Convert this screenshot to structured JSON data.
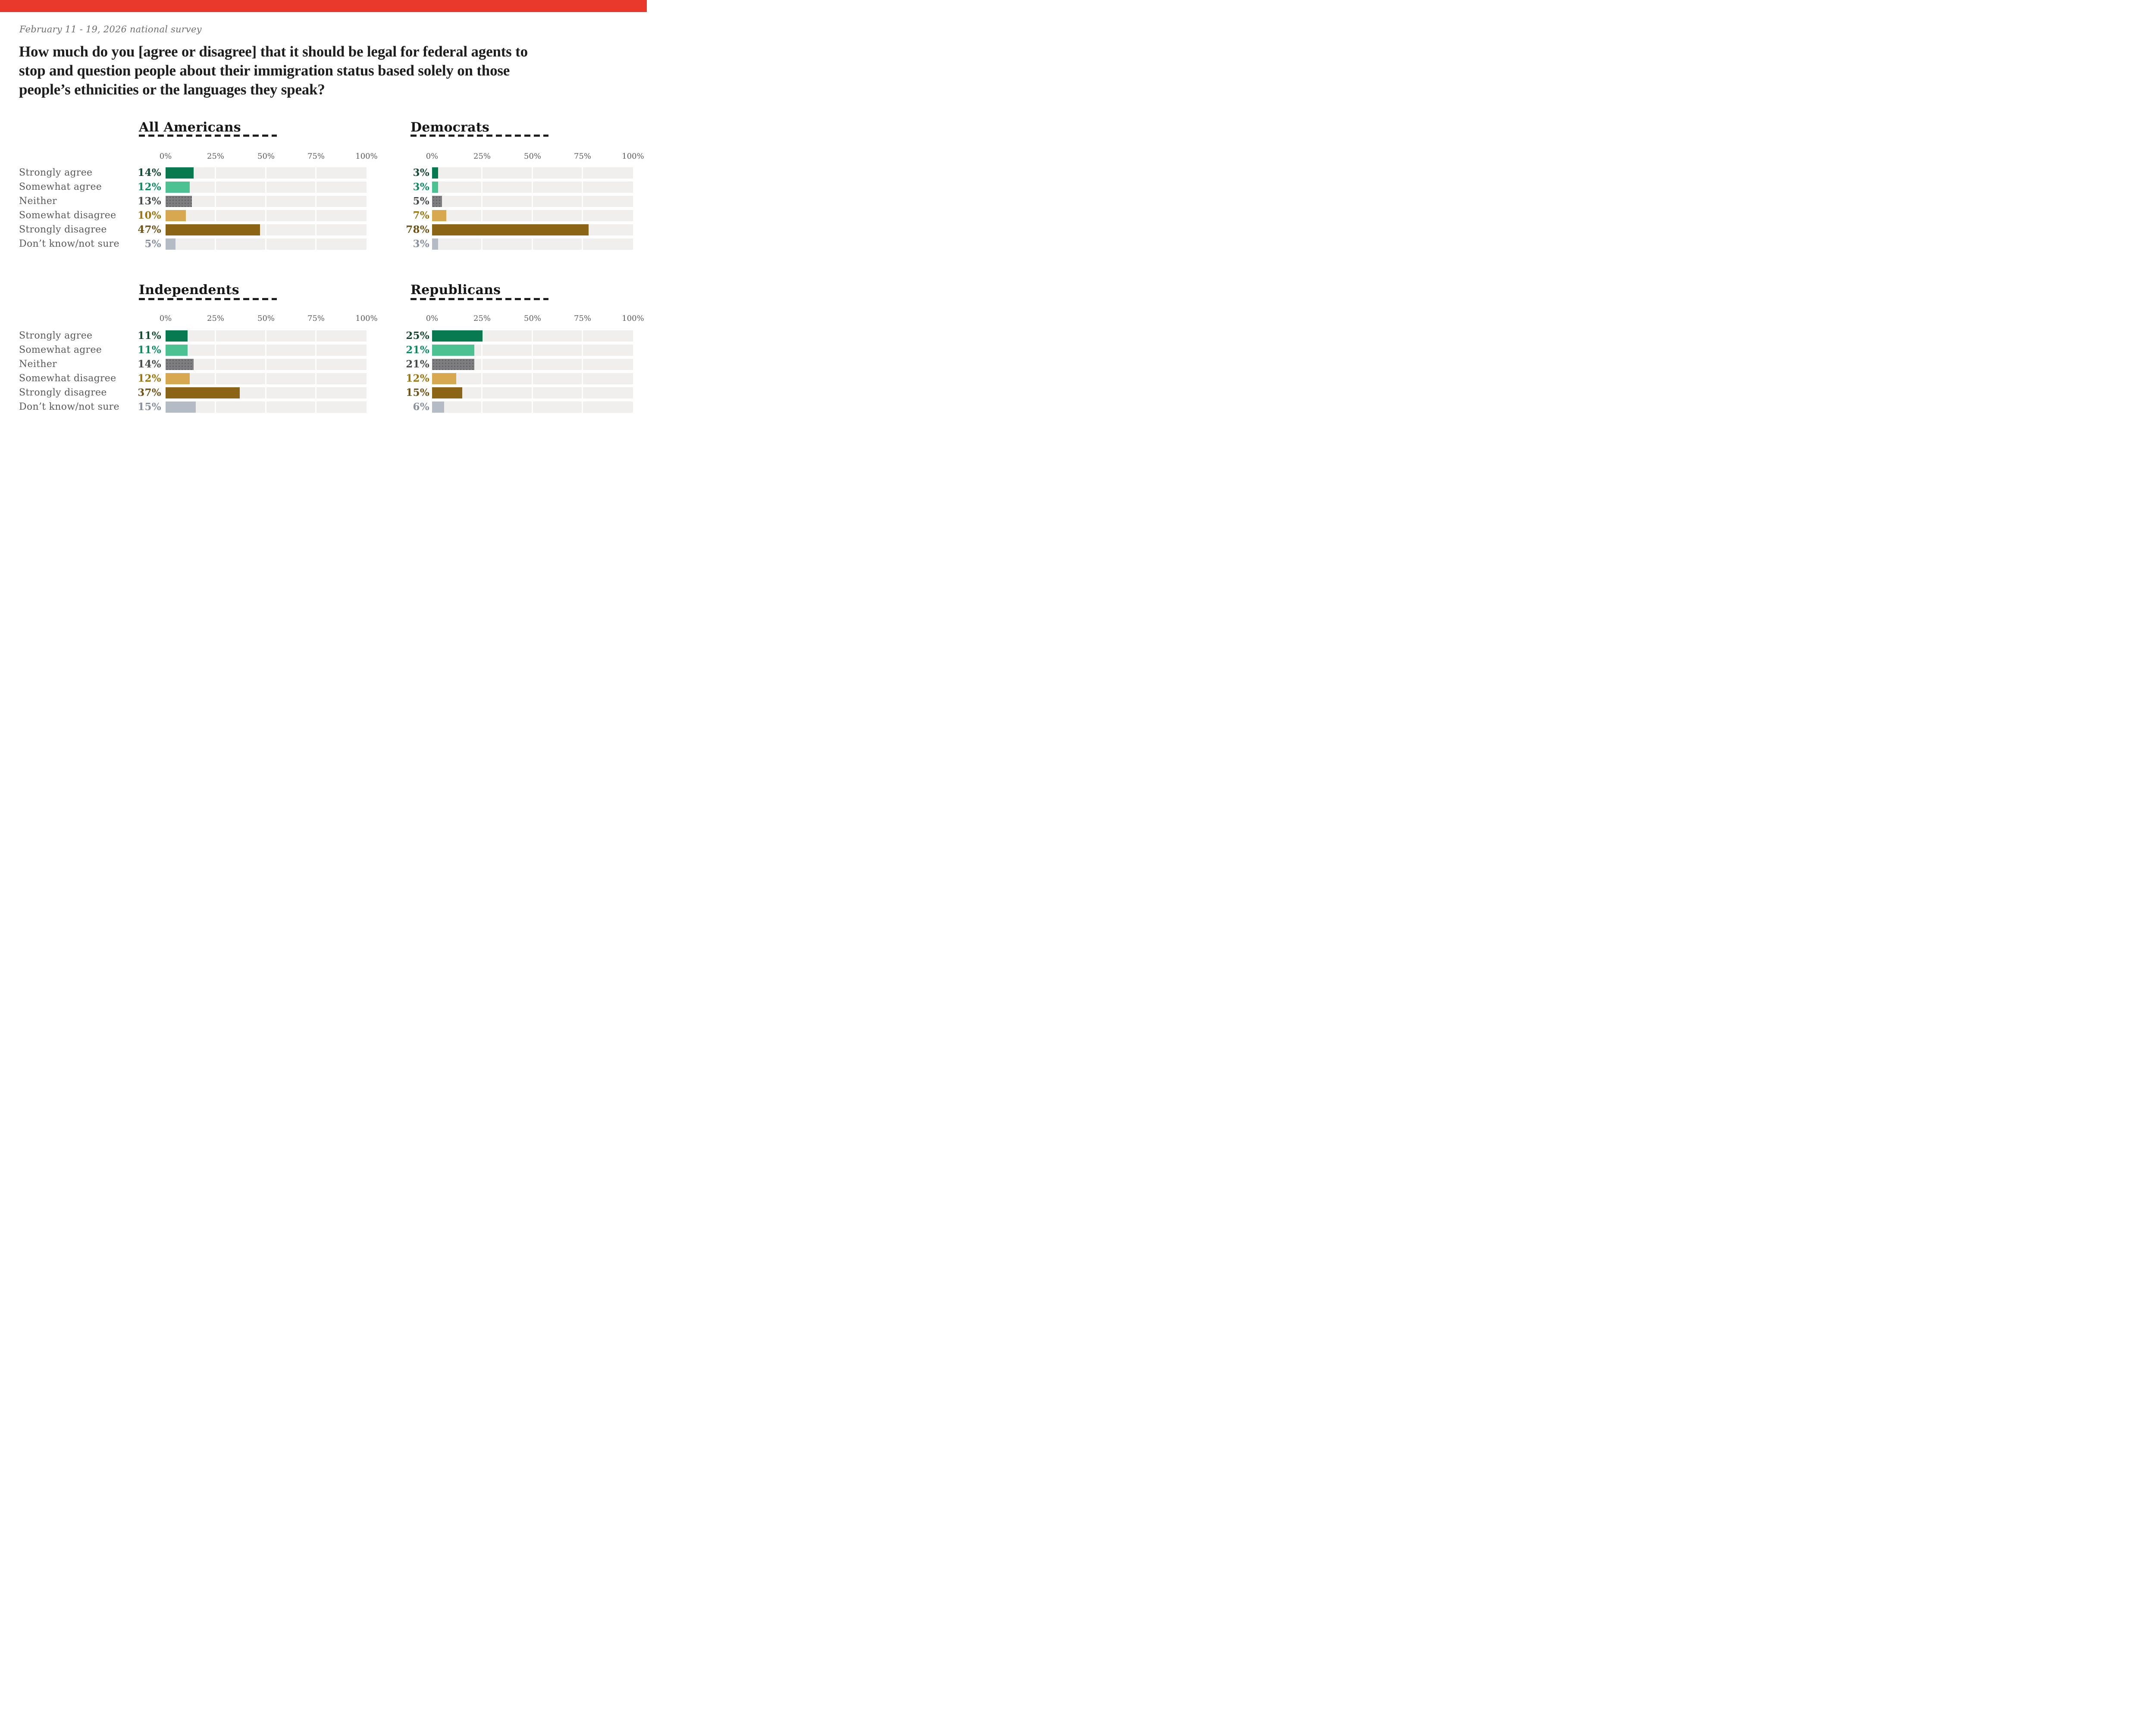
{
  "accent_bar_color": "#e8392c",
  "survey_note": "February 11 - 19, 2026 national survey",
  "title": "How much do you [agree or disagree] that it should be legal for federal agents to\nstop and question people about their immigration status based solely on those\npeople’s ethnicities or the languages they speak?",
  "axis": {
    "ticks": [
      "0%",
      "25%",
      "50%",
      "75%",
      "100%"
    ]
  },
  "categories": [
    "Strongly agree",
    "Somewhat agree",
    "Neither",
    "Somewhat disagree",
    "Strongly disagree",
    "Don’t know/not sure"
  ],
  "chart_data": {
    "type": "bar",
    "orientation": "horizontal",
    "title": "How much do you [agree or disagree] that it should be legal for federal agents to stop and question people about their immigration status based solely on those people’s ethnicities or the languages they speak?",
    "subtitle": "February 11 - 19, 2026 national survey",
    "categories": [
      "Strongly agree",
      "Somewhat agree",
      "Neither",
      "Somewhat disagree",
      "Strongly disagree",
      "Don’t know/not sure"
    ],
    "series": [
      {
        "name": "All Americans",
        "values": [
          14,
          12,
          13,
          10,
          47,
          5
        ]
      },
      {
        "name": "Democrats",
        "values": [
          3,
          3,
          5,
          7,
          78,
          3
        ]
      },
      {
        "name": "Independents",
        "values": [
          11,
          11,
          14,
          12,
          37,
          15
        ]
      },
      {
        "name": "Republicans",
        "values": [
          25,
          21,
          21,
          12,
          15,
          6
        ]
      }
    ],
    "xlim": [
      0,
      100
    ],
    "x_tick_labels": [
      "0%",
      "25%",
      "50%",
      "75%",
      "100%"
    ],
    "grid": "white gaps at 25/50/75 on light-gray tracks",
    "legend_position": "none",
    "bar_colors": [
      "#087a52",
      "#4cc293",
      "#7e7e81",
      "#d8a850",
      "#8b6415",
      "#b4bbc4"
    ]
  },
  "panels": [
    {
      "title": "All Americans",
      "rows": [
        {
          "label": "Strongly agree",
          "value": 14,
          "display": "14%",
          "bar": "#087a52",
          "text": "#114a33"
        },
        {
          "label": "Somewhat agree",
          "value": 12,
          "display": "12%",
          "bar": "#4cc293",
          "text": "#108a5f"
        },
        {
          "label": "Neither",
          "value": 13,
          "display": "13%",
          "bar": "#7e7e81",
          "text": "#474a4a"
        },
        {
          "label": "Somewhat disagree",
          "value": 10,
          "display": "10%",
          "bar": "#d8a850",
          "text": "#9b7412"
        },
        {
          "label": "Strongly disagree",
          "value": 47,
          "display": "47%",
          "bar": "#8b6415",
          "text": "#6f5110"
        },
        {
          "label": "Don’t know/not sure",
          "value": 5,
          "display": "5%",
          "bar": "#b4bbc4",
          "text": "#87909c"
        }
      ]
    },
    {
      "title": "Democrats",
      "rows": [
        {
          "label": "Strongly agree",
          "value": 3,
          "display": "3%",
          "bar": "#087a52",
          "text": "#114a33"
        },
        {
          "label": "Somewhat agree",
          "value": 3,
          "display": "3%",
          "bar": "#4cc293",
          "text": "#108a5f"
        },
        {
          "label": "Neither",
          "value": 5,
          "display": "5%",
          "bar": "#7e7e81",
          "text": "#474a4a"
        },
        {
          "label": "Somewhat disagree",
          "value": 7,
          "display": "7%",
          "bar": "#d8a850",
          "text": "#9b7412"
        },
        {
          "label": "Strongly disagree",
          "value": 78,
          "display": "78%",
          "bar": "#8b6415",
          "text": "#6f5110"
        },
        {
          "label": "Don’t know/not sure",
          "value": 3,
          "display": "3%",
          "bar": "#b4bbc4",
          "text": "#87909c"
        }
      ]
    },
    {
      "title": "Independents",
      "rows": [
        {
          "label": "Strongly agree",
          "value": 11,
          "display": "11%",
          "bar": "#087a52",
          "text": "#114a33"
        },
        {
          "label": "Somewhat agree",
          "value": 11,
          "display": "11%",
          "bar": "#4cc293",
          "text": "#108a5f"
        },
        {
          "label": "Neither",
          "value": 14,
          "display": "14%",
          "bar": "#7e7e81",
          "text": "#474a4a"
        },
        {
          "label": "Somewhat disagree",
          "value": 12,
          "display": "12%",
          "bar": "#d8a850",
          "text": "#9b7412"
        },
        {
          "label": "Strongly disagree",
          "value": 37,
          "display": "37%",
          "bar": "#8b6415",
          "text": "#6f5110"
        },
        {
          "label": "Don’t know/not sure",
          "value": 15,
          "display": "15%",
          "bar": "#b4bbc4",
          "text": "#87909c"
        }
      ]
    },
    {
      "title": "Republicans",
      "rows": [
        {
          "label": "Strongly agree",
          "value": 25,
          "display": "25%",
          "bar": "#087a52",
          "text": "#114a33"
        },
        {
          "label": "Somewhat agree",
          "value": 21,
          "display": "21%",
          "bar": "#4cc293",
          "text": "#108a5f"
        },
        {
          "label": "Neither",
          "value": 21,
          "display": "21%",
          "bar": "#7e7e81",
          "text": "#474a4a"
        },
        {
          "label": "Somewhat disagree",
          "value": 12,
          "display": "12%",
          "bar": "#d8a850",
          "text": "#9b7412"
        },
        {
          "label": "Strongly disagree",
          "value": 15,
          "display": "15%",
          "bar": "#8b6415",
          "text": "#6f5110"
        },
        {
          "label": "Don’t know/not sure",
          "value": 6,
          "display": "6%",
          "bar": "#b4bbc4",
          "text": "#87909c"
        }
      ]
    }
  ]
}
